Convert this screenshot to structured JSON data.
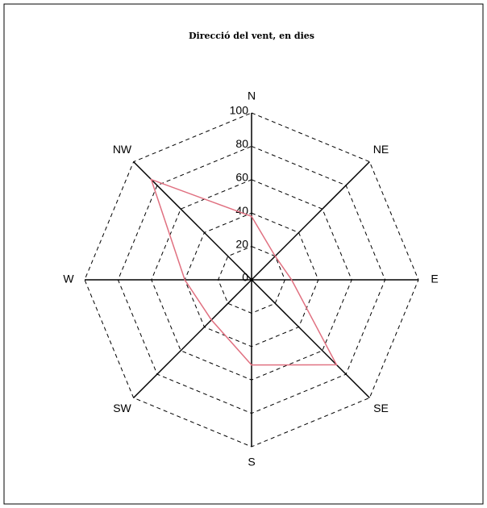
{
  "chart_data": {
    "type": "radar",
    "title": "Direcció del vent, en dies",
    "categories": [
      "N",
      "NE",
      "E",
      "SE",
      "S",
      "SW",
      "W",
      "NW"
    ],
    "values": [
      38,
      20,
      24,
      72,
      51,
      34,
      40,
      85
    ],
    "color": "#e07080",
    "rlim": [
      0,
      100
    ],
    "rticks": [
      0,
      20,
      40,
      60,
      80,
      100
    ],
    "grid": true
  }
}
